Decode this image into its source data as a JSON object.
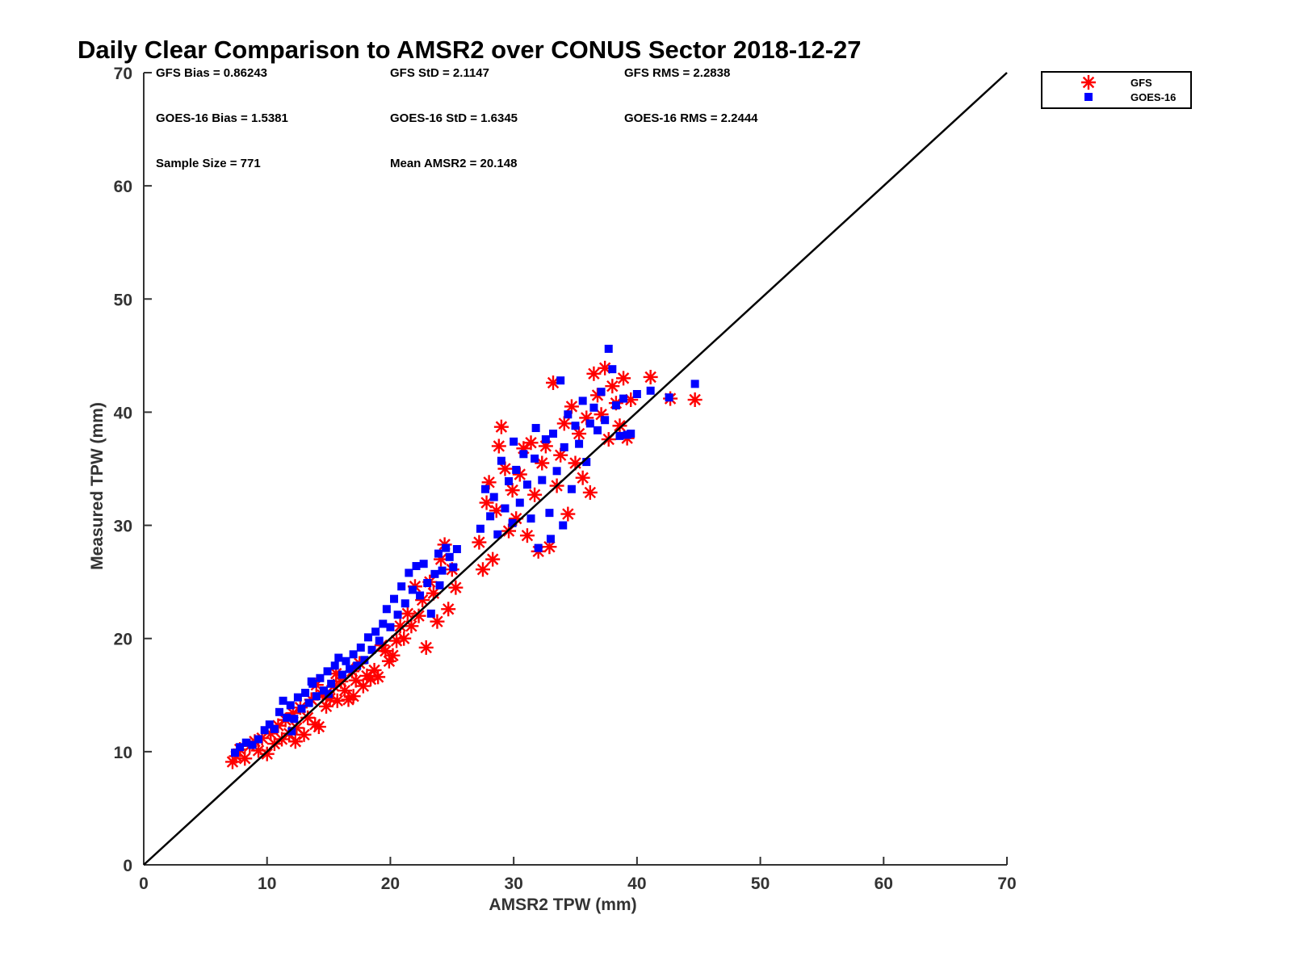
{
  "chart_data": {
    "type": "scatter",
    "title": "Daily Clear Comparison to AMSR2 over CONUS Sector 2018-12-27",
    "xlabel": "AMSR2 TPW (mm)",
    "ylabel": "Measured TPW (mm)",
    "xlim": [
      0,
      70
    ],
    "ylim": [
      0,
      70
    ],
    "xticks": [
      "0",
      "10",
      "20",
      "30",
      "40",
      "50",
      "60",
      "70"
    ],
    "yticks": [
      "0",
      "10",
      "20",
      "30",
      "40",
      "50",
      "60",
      "70"
    ],
    "grid": false,
    "legend_position": "top-right",
    "reference_line": [
      [
        0,
        0
      ],
      [
        70,
        70
      ]
    ],
    "stats": {
      "gfs_bias": "GFS Bias = 0.86243",
      "gfs_std": "GFS StD = 2.1147",
      "gfs_rms": "GFS RMS = 2.2838",
      "goes_bias": "GOES-16 Bias = 1.5381",
      "goes_std": "GOES-16 StD = 1.6345",
      "goes_rms": "GOES-16 RMS = 2.2444",
      "sample_size": "Sample Size = 771",
      "mean_amsr2": "Mean AMSR2 = 20.148"
    },
    "series": [
      {
        "name": "GFS",
        "marker": "asterisk",
        "color": "#ff0000",
        "points": [
          [
            7.2,
            9.1
          ],
          [
            7.5,
            9.6
          ],
          [
            7.8,
            10.2
          ],
          [
            8.2,
            9.4
          ],
          [
            8.6,
            10.5
          ],
          [
            9.0,
            10.9
          ],
          [
            9.3,
            10.1
          ],
          [
            9.6,
            11.2
          ],
          [
            10.0,
            9.8
          ],
          [
            10.3,
            11.6
          ],
          [
            10.6,
            10.7
          ],
          [
            10.9,
            12.3
          ],
          [
            11.2,
            11.1
          ],
          [
            11.5,
            12.8
          ],
          [
            11.8,
            11.6
          ],
          [
            12.1,
            13.4
          ],
          [
            12.4,
            12.1
          ],
          [
            12.7,
            13.9
          ],
          [
            13.0,
            11.5
          ],
          [
            13.3,
            13.0
          ],
          [
            13.6,
            14.6
          ],
          [
            13.9,
            12.4
          ],
          [
            14.2,
            12.2
          ],
          [
            14.5,
            15.0
          ],
          [
            14.8,
            14.0
          ],
          [
            15.1,
            14.7
          ],
          [
            15.4,
            15.8
          ],
          [
            15.7,
            14.5
          ],
          [
            16.0,
            16.2
          ],
          [
            16.3,
            15.4
          ],
          [
            16.6,
            14.6
          ],
          [
            16.9,
            17.1
          ],
          [
            17.2,
            16.3
          ],
          [
            17.5,
            17.8
          ],
          [
            17.8,
            15.8
          ],
          [
            18.1,
            16.7
          ],
          [
            18.4,
            16.4
          ],
          [
            18.7,
            17.2
          ],
          [
            19.0,
            16.6
          ],
          [
            19.3,
            19.4
          ],
          [
            19.6,
            18.9
          ],
          [
            19.9,
            18.0
          ],
          [
            20.2,
            18.5
          ],
          [
            20.5,
            19.8
          ],
          [
            20.8,
            21.1
          ],
          [
            21.1,
            20.0
          ],
          [
            21.4,
            22.2
          ],
          [
            21.7,
            21.1
          ],
          [
            22.0,
            24.6
          ],
          [
            22.3,
            22.0
          ],
          [
            22.6,
            23.4
          ],
          [
            22.9,
            19.2
          ],
          [
            23.2,
            25.0
          ],
          [
            23.5,
            24.0
          ],
          [
            23.8,
            21.5
          ],
          [
            24.1,
            27.0
          ],
          [
            24.4,
            28.3
          ],
          [
            24.7,
            22.6
          ],
          [
            25.0,
            26.1
          ],
          [
            25.3,
            24.5
          ],
          [
            27.2,
            28.5
          ],
          [
            27.5,
            26.1
          ],
          [
            27.8,
            32.0
          ],
          [
            28.0,
            33.8
          ],
          [
            28.3,
            27.0
          ],
          [
            28.6,
            31.3
          ],
          [
            28.8,
            37.0
          ],
          [
            29.0,
            38.7
          ],
          [
            29.3,
            35.0
          ],
          [
            29.6,
            29.5
          ],
          [
            29.9,
            33.1
          ],
          [
            30.2,
            30.6
          ],
          [
            30.5,
            34.5
          ],
          [
            30.8,
            36.8
          ],
          [
            31.1,
            29.1
          ],
          [
            31.4,
            37.3
          ],
          [
            31.7,
            32.7
          ],
          [
            32.0,
            27.7
          ],
          [
            32.3,
            35.5
          ],
          [
            32.6,
            37.0
          ],
          [
            32.9,
            28.1
          ],
          [
            33.2,
            42.6
          ],
          [
            33.5,
            33.5
          ],
          [
            33.8,
            36.2
          ],
          [
            34.1,
            39.0
          ],
          [
            34.4,
            31.0
          ],
          [
            34.7,
            40.5
          ],
          [
            35.0,
            35.5
          ],
          [
            35.3,
            38.1
          ],
          [
            35.6,
            34.2
          ],
          [
            35.9,
            39.5
          ],
          [
            36.2,
            32.9
          ],
          [
            36.5,
            43.4
          ],
          [
            36.8,
            41.5
          ],
          [
            37.1,
            39.8
          ],
          [
            37.4,
            43.9
          ],
          [
            37.7,
            37.6
          ],
          [
            38.0,
            42.3
          ],
          [
            38.3,
            40.8
          ],
          [
            38.6,
            38.8
          ],
          [
            38.9,
            43.0
          ],
          [
            39.2,
            37.7
          ],
          [
            39.5,
            41.1
          ],
          [
            41.1,
            43.1
          ],
          [
            42.7,
            41.2
          ],
          [
            44.7,
            41.1
          ],
          [
            12.3,
            10.9
          ],
          [
            14.0,
            15.9
          ],
          [
            15.6,
            16.9
          ],
          [
            17.0,
            14.9
          ]
        ]
      },
      {
        "name": "GOES-16",
        "marker": "square",
        "color": "#0000ff",
        "points": [
          [
            7.4,
            9.9
          ],
          [
            7.8,
            10.4
          ],
          [
            8.3,
            10.8
          ],
          [
            8.8,
            10.6
          ],
          [
            9.3,
            11.1
          ],
          [
            9.8,
            11.9
          ],
          [
            10.2,
            12.4
          ],
          [
            10.6,
            12.0
          ],
          [
            11.0,
            13.5
          ],
          [
            11.3,
            14.5
          ],
          [
            11.6,
            13.0
          ],
          [
            11.9,
            14.1
          ],
          [
            12.2,
            12.9
          ],
          [
            12.5,
            14.8
          ],
          [
            12.8,
            13.8
          ],
          [
            13.1,
            15.2
          ],
          [
            13.4,
            14.3
          ],
          [
            13.7,
            16.0
          ],
          [
            14.0,
            14.9
          ],
          [
            14.3,
            16.5
          ],
          [
            14.6,
            15.4
          ],
          [
            14.9,
            17.1
          ],
          [
            15.2,
            16.0
          ],
          [
            15.5,
            17.6
          ],
          [
            15.8,
            18.3
          ],
          [
            16.1,
            16.8
          ],
          [
            16.4,
            18.0
          ],
          [
            16.7,
            17.3
          ],
          [
            17.0,
            18.6
          ],
          [
            17.3,
            17.6
          ],
          [
            17.6,
            19.2
          ],
          [
            17.9,
            18.1
          ],
          [
            18.2,
            20.1
          ],
          [
            18.5,
            19.0
          ],
          [
            18.8,
            20.6
          ],
          [
            19.1,
            19.8
          ],
          [
            19.4,
            21.3
          ],
          [
            19.7,
            22.6
          ],
          [
            20.0,
            21.0
          ],
          [
            20.3,
            23.5
          ],
          [
            20.6,
            22.1
          ],
          [
            20.9,
            24.6
          ],
          [
            21.2,
            23.1
          ],
          [
            21.5,
            25.8
          ],
          [
            21.8,
            24.3
          ],
          [
            22.1,
            26.4
          ],
          [
            22.4,
            23.8
          ],
          [
            22.7,
            26.6
          ],
          [
            23.0,
            24.9
          ],
          [
            23.3,
            22.2
          ],
          [
            23.6,
            25.7
          ],
          [
            23.9,
            27.5
          ],
          [
            24.2,
            26.0
          ],
          [
            24.5,
            28.0
          ],
          [
            24.8,
            27.2
          ],
          [
            25.1,
            26.3
          ],
          [
            25.4,
            27.9
          ],
          [
            27.3,
            29.7
          ],
          [
            27.7,
            33.2
          ],
          [
            28.1,
            30.8
          ],
          [
            28.4,
            32.5
          ],
          [
            28.7,
            29.2
          ],
          [
            29.0,
            35.7
          ],
          [
            29.3,
            31.5
          ],
          [
            29.6,
            33.9
          ],
          [
            29.9,
            30.2
          ],
          [
            30.2,
            34.9
          ],
          [
            30.5,
            32.0
          ],
          [
            30.8,
            36.3
          ],
          [
            31.1,
            33.6
          ],
          [
            31.4,
            30.6
          ],
          [
            31.7,
            35.9
          ],
          [
            32.0,
            28.0
          ],
          [
            32.3,
            34.0
          ],
          [
            32.6,
            37.6
          ],
          [
            32.9,
            31.1
          ],
          [
            33.2,
            38.1
          ],
          [
            33.5,
            34.8
          ],
          [
            33.8,
            42.8
          ],
          [
            34.1,
            36.9
          ],
          [
            34.4,
            39.8
          ],
          [
            34.7,
            33.2
          ],
          [
            35.0,
            38.8
          ],
          [
            35.3,
            37.2
          ],
          [
            35.6,
            41.0
          ],
          [
            35.9,
            35.6
          ],
          [
            36.2,
            39.0
          ],
          [
            36.5,
            40.4
          ],
          [
            36.8,
            38.4
          ],
          [
            37.1,
            41.8
          ],
          [
            37.4,
            39.3
          ],
          [
            37.7,
            45.6
          ],
          [
            38.0,
            43.8
          ],
          [
            38.3,
            40.6
          ],
          [
            38.6,
            37.9
          ],
          [
            38.9,
            41.2
          ],
          [
            39.2,
            38.0
          ],
          [
            39.5,
            38.1
          ],
          [
            40.0,
            41.6
          ],
          [
            41.1,
            41.9
          ],
          [
            42.6,
            41.3
          ],
          [
            44.7,
            42.5
          ],
          [
            13.6,
            16.2
          ],
          [
            15.0,
            15.1
          ],
          [
            12.0,
            11.8
          ],
          [
            30.0,
            37.4
          ],
          [
            31.8,
            38.6
          ],
          [
            33.0,
            28.8
          ],
          [
            34.0,
            30.0
          ],
          [
            24.0,
            24.7
          ]
        ]
      }
    ]
  }
}
